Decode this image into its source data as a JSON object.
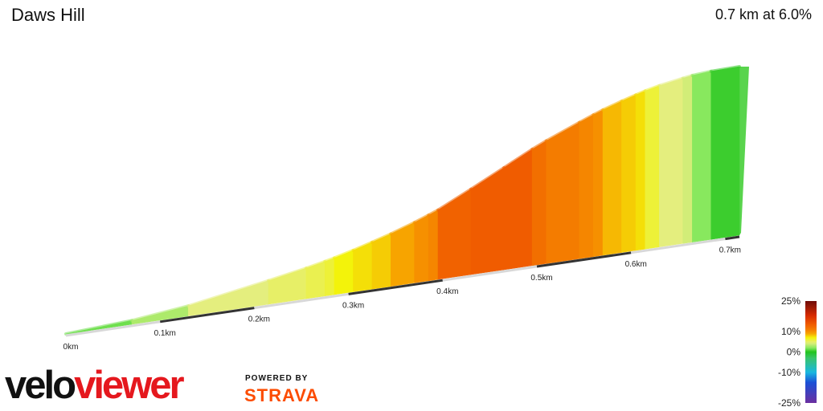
{
  "header": {
    "segment_name": "Daws Hill",
    "summary": "0.7 km at 6.0%"
  },
  "chart_data": {
    "type": "area",
    "title": "Daws Hill",
    "xlabel": "",
    "ylabel": "",
    "x_unit": "km",
    "xlim": [
      0,
      0.7
    ],
    "x_ticks": [
      "0km",
      "0.1km",
      "0.2km",
      "0.3km",
      "0.4km",
      "0.5km",
      "0.6km",
      "0.7km"
    ],
    "segments": [
      {
        "start_km": 0.0,
        "end_km": 0.07,
        "grade": 1.5
      },
      {
        "start_km": 0.07,
        "end_km": 0.13,
        "grade": 3.0
      },
      {
        "start_km": 0.13,
        "end_km": 0.215,
        "grade": 4.5
      },
      {
        "start_km": 0.215,
        "end_km": 0.255,
        "grade": 5.0
      },
      {
        "start_km": 0.255,
        "end_km": 0.275,
        "grade": 5.5
      },
      {
        "start_km": 0.275,
        "end_km": 0.285,
        "grade": 6.0
      },
      {
        "start_km": 0.285,
        "end_km": 0.305,
        "grade": 7.0
      },
      {
        "start_km": 0.305,
        "end_km": 0.325,
        "grade": 7.5
      },
      {
        "start_km": 0.325,
        "end_km": 0.345,
        "grade": 8.0
      },
      {
        "start_km": 0.345,
        "end_km": 0.37,
        "grade": 9.0
      },
      {
        "start_km": 0.37,
        "end_km": 0.385,
        "grade": 10.0
      },
      {
        "start_km": 0.385,
        "end_km": 0.395,
        "grade": 10.5
      },
      {
        "start_km": 0.395,
        "end_km": 0.43,
        "grade": 13.0
      },
      {
        "start_km": 0.43,
        "end_km": 0.465,
        "grade": 13.5
      },
      {
        "start_km": 0.465,
        "end_km": 0.495,
        "grade": 13.5
      },
      {
        "start_km": 0.495,
        "end_km": 0.51,
        "grade": 12.0
      },
      {
        "start_km": 0.51,
        "end_km": 0.545,
        "grade": 11.0
      },
      {
        "start_km": 0.545,
        "end_km": 0.56,
        "grade": 10.5
      },
      {
        "start_km": 0.56,
        "end_km": 0.57,
        "grade": 10.0
      },
      {
        "start_km": 0.57,
        "end_km": 0.59,
        "grade": 8.5
      },
      {
        "start_km": 0.59,
        "end_km": 0.605,
        "grade": 8.0
      },
      {
        "start_km": 0.605,
        "end_km": 0.615,
        "grade": 7.5
      },
      {
        "start_km": 0.615,
        "end_km": 0.63,
        "grade": 6.0
      },
      {
        "start_km": 0.63,
        "end_km": 0.655,
        "grade": 4.5
      },
      {
        "start_km": 0.655,
        "end_km": 0.665,
        "grade": 4.0
      },
      {
        "start_km": 0.665,
        "end_km": 0.685,
        "grade": 2.0
      },
      {
        "start_km": 0.685,
        "end_km": 0.715,
        "grade": 0.5
      }
    ],
    "legend": {
      "placement": "bottom-right",
      "labels": [
        "25%",
        "10%",
        "0%",
        "-10%",
        "-25%"
      ],
      "values": [
        25,
        10,
        0,
        -10,
        -25
      ]
    },
    "grade_colors": [
      {
        "grade": -25,
        "color": "#6b2fa0"
      },
      {
        "grade": -15,
        "color": "#1a4fd6"
      },
      {
        "grade": -10,
        "color": "#19b7e0"
      },
      {
        "grade": -3,
        "color": "#39c46b"
      },
      {
        "grade": 0,
        "color": "#22c41e"
      },
      {
        "grade": 2,
        "color": "#88e85e"
      },
      {
        "grade": 4.5,
        "color": "#e4ee7e"
      },
      {
        "grade": 7,
        "color": "#f3f30a"
      },
      {
        "grade": 9,
        "color": "#f7a400"
      },
      {
        "grade": 11,
        "color": "#f47c00"
      },
      {
        "grade": 13.5,
        "color": "#f05c00"
      },
      {
        "grade": 18,
        "color": "#d62a00"
      },
      {
        "grade": 25,
        "color": "#6e0c08"
      }
    ]
  },
  "branding": {
    "logo_part1": "velo",
    "logo_part2": "viewer",
    "powered_by": "POWERED BY",
    "strava": "STRAVA",
    "logo_color": "#e5181e",
    "strava_color": "#fc4c02"
  }
}
